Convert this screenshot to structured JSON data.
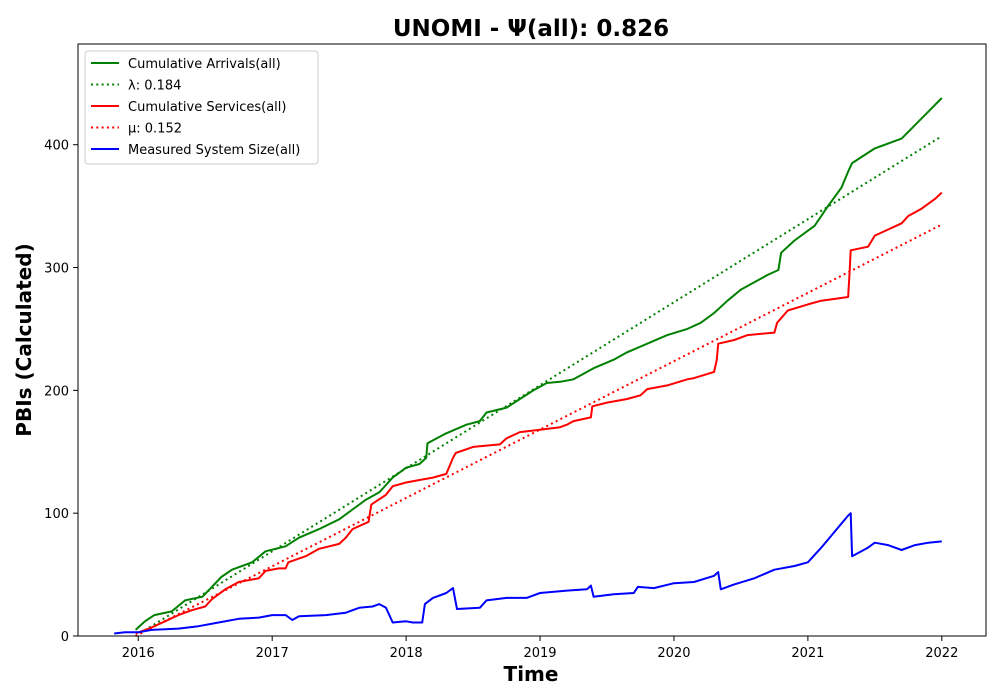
{
  "chart_data": {
    "type": "line",
    "title": "UNOMI -  Ψ(all): 0.826",
    "xlabel": "Time",
    "ylabel": "PBIs (Calculated)",
    "xlim": [
      2015.55,
      2022.33
    ],
    "ylim": [
      0,
      482
    ],
    "x_ticks": [
      "2016",
      "2017",
      "2018",
      "2019",
      "2020",
      "2021",
      "2022"
    ],
    "y_ticks": [
      "0",
      "100",
      "200",
      "300",
      "400"
    ],
    "grid": false,
    "legend_position": "top-left",
    "series": [
      {
        "name": "Cumulative Arrivals(all)",
        "style": "solid",
        "color": "#008000",
        "points": [
          [
            2015.98,
            5
          ],
          [
            2016.05,
            12
          ],
          [
            2016.12,
            17
          ],
          [
            2016.25,
            20
          ],
          [
            2016.35,
            29
          ],
          [
            2016.48,
            32
          ],
          [
            2016.55,
            40
          ],
          [
            2016.62,
            48
          ],
          [
            2016.7,
            54
          ],
          [
            2016.85,
            60
          ],
          [
            2016.95,
            69
          ],
          [
            2017.1,
            73
          ],
          [
            2017.2,
            80
          ],
          [
            2017.35,
            87
          ],
          [
            2017.5,
            95
          ],
          [
            2017.6,
            103
          ],
          [
            2017.7,
            111
          ],
          [
            2017.8,
            117
          ],
          [
            2017.9,
            129
          ],
          [
            2018.0,
            137
          ],
          [
            2018.1,
            140
          ],
          [
            2018.15,
            145
          ],
          [
            2018.16,
            157
          ],
          [
            2018.3,
            165
          ],
          [
            2018.45,
            172
          ],
          [
            2018.55,
            175
          ],
          [
            2018.6,
            182
          ],
          [
            2018.75,
            186
          ],
          [
            2018.85,
            193
          ],
          [
            2018.95,
            200
          ],
          [
            2019.05,
            206
          ],
          [
            2019.15,
            207
          ],
          [
            2019.25,
            209
          ],
          [
            2019.4,
            218
          ],
          [
            2019.55,
            225
          ],
          [
            2019.65,
            231
          ],
          [
            2019.8,
            238
          ],
          [
            2019.95,
            245
          ],
          [
            2020.1,
            250
          ],
          [
            2020.2,
            255
          ],
          [
            2020.3,
            263
          ],
          [
            2020.4,
            273
          ],
          [
            2020.5,
            282
          ],
          [
            2020.6,
            288
          ],
          [
            2020.7,
            294
          ],
          [
            2020.78,
            298
          ],
          [
            2020.8,
            312
          ],
          [
            2020.9,
            322
          ],
          [
            2021.0,
            330
          ],
          [
            2021.05,
            334
          ],
          [
            2021.15,
            350
          ],
          [
            2021.25,
            365
          ],
          [
            2021.3,
            378
          ],
          [
            2021.33,
            385
          ],
          [
            2021.4,
            390
          ],
          [
            2021.5,
            397
          ],
          [
            2021.6,
            401
          ],
          [
            2021.7,
            405
          ],
          [
            2021.8,
            416
          ],
          [
            2021.9,
            427
          ],
          [
            2022.0,
            438
          ]
        ]
      },
      {
        "name": "λ: 0.184",
        "style": "dotted",
        "color": "#008000",
        "points": [
          [
            2015.98,
            0
          ],
          [
            2022.0,
            407
          ]
        ]
      },
      {
        "name": "Cumulative Services(all)",
        "style": "solid",
        "color": "#ff0000",
        "points": [
          [
            2015.98,
            2
          ],
          [
            2016.1,
            7
          ],
          [
            2016.2,
            12
          ],
          [
            2016.3,
            17
          ],
          [
            2016.4,
            21
          ],
          [
            2016.5,
            24
          ],
          [
            2016.55,
            30
          ],
          [
            2016.65,
            38
          ],
          [
            2016.75,
            44
          ],
          [
            2016.9,
            47
          ],
          [
            2016.95,
            53
          ],
          [
            2017.05,
            55
          ],
          [
            2017.1,
            55
          ],
          [
            2017.12,
            60
          ],
          [
            2017.25,
            65
          ],
          [
            2017.35,
            71
          ],
          [
            2017.5,
            75
          ],
          [
            2017.55,
            80
          ],
          [
            2017.6,
            87
          ],
          [
            2017.72,
            93
          ],
          [
            2017.74,
            107
          ],
          [
            2017.85,
            115
          ],
          [
            2017.9,
            122
          ],
          [
            2018.0,
            125
          ],
          [
            2018.1,
            127
          ],
          [
            2018.2,
            129
          ],
          [
            2018.3,
            132
          ],
          [
            2018.35,
            145
          ],
          [
            2018.37,
            149
          ],
          [
            2018.5,
            154
          ],
          [
            2018.7,
            156
          ],
          [
            2018.75,
            161
          ],
          [
            2018.85,
            166
          ],
          [
            2019.0,
            168
          ],
          [
            2019.15,
            170
          ],
          [
            2019.2,
            172
          ],
          [
            2019.25,
            175
          ],
          [
            2019.38,
            178
          ],
          [
            2019.39,
            187
          ],
          [
            2019.5,
            190
          ],
          [
            2019.65,
            193
          ],
          [
            2019.75,
            196
          ],
          [
            2019.8,
            201
          ],
          [
            2019.95,
            204
          ],
          [
            2020.1,
            209
          ],
          [
            2020.15,
            210
          ],
          [
            2020.3,
            215
          ],
          [
            2020.32,
            225
          ],
          [
            2020.33,
            238
          ],
          [
            2020.45,
            241
          ],
          [
            2020.55,
            245
          ],
          [
            2020.75,
            247
          ],
          [
            2020.77,
            255
          ],
          [
            2020.85,
            265
          ],
          [
            2021.0,
            270
          ],
          [
            2021.1,
            273
          ],
          [
            2021.3,
            276
          ],
          [
            2021.31,
            293
          ],
          [
            2021.32,
            314
          ],
          [
            2021.45,
            317
          ],
          [
            2021.5,
            326
          ],
          [
            2021.6,
            331
          ],
          [
            2021.7,
            336
          ],
          [
            2021.75,
            342
          ],
          [
            2021.85,
            348
          ],
          [
            2021.95,
            356
          ],
          [
            2022.0,
            361
          ]
        ]
      },
      {
        "name": "μ: 0.152",
        "style": "dotted",
        "color": "#ff0000",
        "points": [
          [
            2015.98,
            0
          ],
          [
            2022.0,
            335
          ]
        ]
      },
      {
        "name": "Measured System Size(all)",
        "style": "solid",
        "color": "#0000ff",
        "points": [
          [
            2015.82,
            2
          ],
          [
            2015.9,
            3
          ],
          [
            2016.0,
            3
          ],
          [
            2016.1,
            5
          ],
          [
            2016.3,
            6
          ],
          [
            2016.45,
            8
          ],
          [
            2016.6,
            11
          ],
          [
            2016.75,
            14
          ],
          [
            2016.9,
            15
          ],
          [
            2017.0,
            17
          ],
          [
            2017.1,
            17
          ],
          [
            2017.15,
            13
          ],
          [
            2017.2,
            16
          ],
          [
            2017.4,
            17
          ],
          [
            2017.55,
            19
          ],
          [
            2017.65,
            23
          ],
          [
            2017.75,
            24
          ],
          [
            2017.8,
            26
          ],
          [
            2017.85,
            23
          ],
          [
            2017.9,
            11
          ],
          [
            2018.0,
            12
          ],
          [
            2018.05,
            11
          ],
          [
            2018.12,
            11
          ],
          [
            2018.14,
            26
          ],
          [
            2018.2,
            31
          ],
          [
            2018.3,
            35
          ],
          [
            2018.35,
            39
          ],
          [
            2018.38,
            22
          ],
          [
            2018.55,
            23
          ],
          [
            2018.6,
            29
          ],
          [
            2018.75,
            31
          ],
          [
            2018.9,
            31
          ],
          [
            2019.0,
            35
          ],
          [
            2019.2,
            37
          ],
          [
            2019.35,
            38
          ],
          [
            2019.38,
            41
          ],
          [
            2019.4,
            32
          ],
          [
            2019.55,
            34
          ],
          [
            2019.7,
            35
          ],
          [
            2019.73,
            40
          ],
          [
            2019.85,
            39
          ],
          [
            2020.0,
            43
          ],
          [
            2020.15,
            44
          ],
          [
            2020.3,
            49
          ],
          [
            2020.33,
            52
          ],
          [
            2020.35,
            38
          ],
          [
            2020.45,
            42
          ],
          [
            2020.6,
            47
          ],
          [
            2020.75,
            54
          ],
          [
            2020.9,
            57
          ],
          [
            2021.0,
            60
          ],
          [
            2021.1,
            72
          ],
          [
            2021.2,
            85
          ],
          [
            2021.3,
            98
          ],
          [
            2021.32,
            100
          ],
          [
            2021.33,
            65
          ],
          [
            2021.45,
            72
          ],
          [
            2021.5,
            76
          ],
          [
            2021.6,
            74
          ],
          [
            2021.7,
            70
          ],
          [
            2021.8,
            74
          ],
          [
            2021.9,
            76
          ],
          [
            2022.0,
            77
          ]
        ]
      }
    ]
  }
}
